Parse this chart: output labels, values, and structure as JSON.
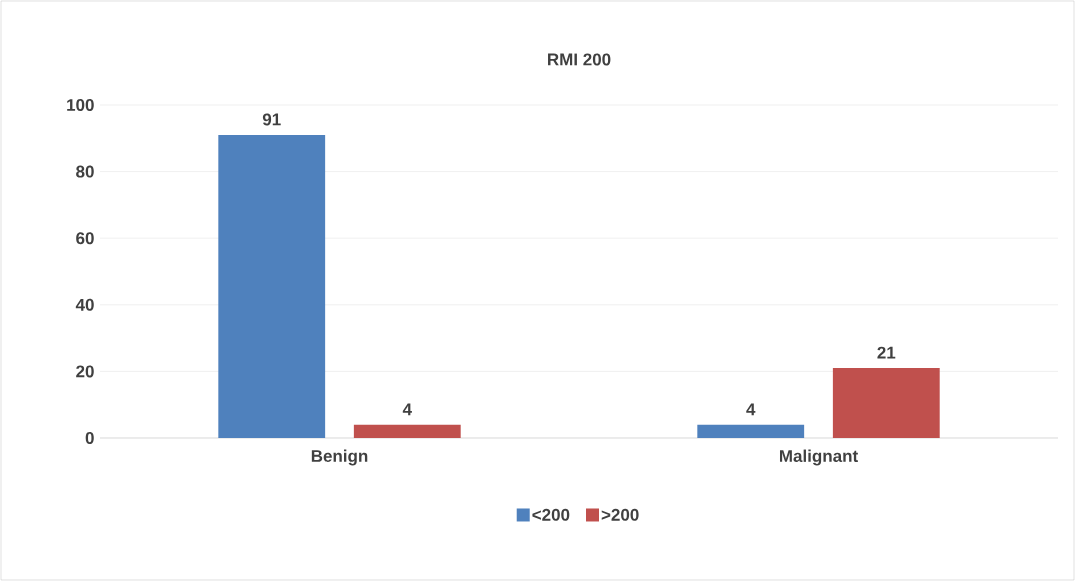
{
  "chart_data": {
    "type": "bar",
    "title": "RMI 200",
    "categories": [
      "Benign",
      "Malignant"
    ],
    "series": [
      {
        "name": "<200",
        "color": "#4f81bd",
        "values": [
          91,
          4
        ]
      },
      {
        "name": ">200",
        "color": "#c0504d",
        "values": [
          4,
          21
        ]
      }
    ],
    "ylim": [
      0,
      100
    ],
    "yticks": [
      0,
      20,
      40,
      60,
      80,
      100
    ],
    "grid": "y",
    "legend": "bottom",
    "data_labels": true
  }
}
